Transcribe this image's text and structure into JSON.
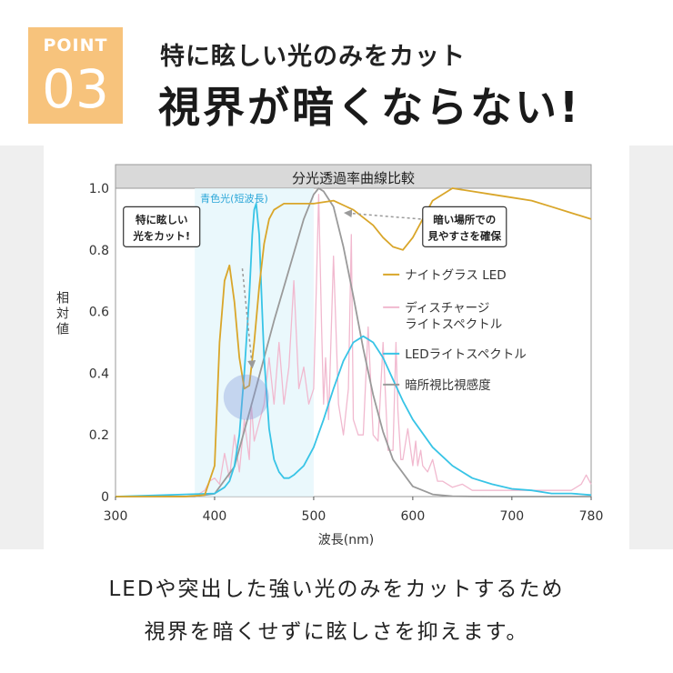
{
  "header": {
    "badge_word": "POINT",
    "badge_number": "03",
    "subtitle": "特に眩しい光のみをカット",
    "title": "視界が暗くならない!"
  },
  "colors": {
    "badge": "#f7c37c",
    "nightglass_led": "#d9a62a",
    "discharge_spectrum": "#f1b9cf",
    "led_spectrum": "#38c4e6",
    "scotopic": "#9a9a9a",
    "blue_band": "#e3f5fb",
    "annotation_blue": "#2aa6d8"
  },
  "chart_data": {
    "type": "line",
    "title": "分光透過率曲線比較",
    "xlabel": "波長(nm)",
    "ylabel": "相対値",
    "xlim": [
      300,
      780
    ],
    "ylim": [
      0,
      1.0
    ],
    "xticks": [
      "300",
      "400",
      "500",
      "600",
      "700",
      "780"
    ],
    "yticks": [
      "0",
      "0.2",
      "0.4",
      "0.6",
      "0.8",
      "1.0"
    ],
    "grid": false,
    "legend_position": "right",
    "blue_band": {
      "label": "青色光(短波長)",
      "range": [
        380,
        500
      ]
    },
    "annotations": [
      {
        "text": [
          "特に眩しい",
          "光をカット!"
        ],
        "target": [
          432,
          0.34
        ]
      },
      {
        "text": [
          "暗い場所での",
          "見やすさを確保"
        ],
        "target": [
          530,
          0.93
        ]
      }
    ],
    "series": [
      {
        "name": "ナイトグラス LED",
        "color": "#d9a62a",
        "x": [
          300,
          370,
          390,
          400,
          405,
          410,
          415,
          420,
          425,
          430,
          435,
          440,
          445,
          450,
          455,
          460,
          470,
          480,
          500,
          520,
          540,
          560,
          570,
          580,
          590,
          600,
          610,
          620,
          640,
          660,
          680,
          700,
          720,
          740,
          760,
          780
        ],
        "y": [
          0,
          0,
          0.005,
          0.1,
          0.5,
          0.7,
          0.75,
          0.63,
          0.45,
          0.35,
          0.36,
          0.5,
          0.68,
          0.82,
          0.9,
          0.93,
          0.95,
          0.95,
          0.95,
          0.96,
          0.93,
          0.88,
          0.84,
          0.81,
          0.8,
          0.84,
          0.9,
          0.96,
          1.0,
          0.99,
          0.98,
          0.97,
          0.96,
          0.94,
          0.92,
          0.9
        ]
      },
      {
        "name": "ディスチャージ ライトスペクトル",
        "color": "#f1b9cf",
        "x": [
          300,
          380,
          390,
          395,
          400,
          405,
          410,
          415,
          420,
          425,
          430,
          435,
          437,
          440,
          445,
          450,
          455,
          460,
          465,
          470,
          475,
          480,
          485,
          490,
          495,
          500,
          503,
          505,
          508,
          510,
          512,
          515,
          520,
          525,
          530,
          535,
          538,
          540,
          545,
          550,
          555,
          560,
          565,
          570,
          575,
          580,
          583,
          585,
          588,
          590,
          595,
          600,
          603,
          605,
          608,
          610,
          615,
          620,
          625,
          630,
          640,
          650,
          660,
          670,
          680,
          690,
          700,
          710,
          720,
          740,
          760,
          770,
          775,
          780
        ],
        "y": [
          0,
          0,
          0.02,
          0.05,
          0.06,
          0.04,
          0.14,
          0.06,
          0.2,
          0.08,
          0.25,
          0.12,
          0.3,
          0.18,
          0.24,
          0.3,
          0.45,
          0.3,
          0.5,
          0.3,
          0.42,
          0.7,
          0.35,
          0.42,
          0.3,
          0.35,
          0.72,
          0.98,
          0.55,
          0.3,
          0.45,
          0.25,
          0.78,
          0.3,
          0.2,
          0.35,
          0.85,
          0.25,
          0.2,
          0.2,
          0.55,
          0.2,
          0.18,
          0.5,
          0.15,
          0.15,
          0.5,
          0.28,
          0.12,
          0.12,
          0.22,
          0.1,
          0.18,
          0.1,
          0.15,
          0.1,
          0.08,
          0.12,
          0.05,
          0.05,
          0.03,
          0.04,
          0.02,
          0.02,
          0.02,
          0.02,
          0.02,
          0.02,
          0.02,
          0.02,
          0.02,
          0.04,
          0.07,
          0.04
        ]
      },
      {
        "name": "LEDライトスペクトル",
        "color": "#38c4e6",
        "x": [
          300,
          400,
          410,
          415,
          420,
          425,
          430,
          435,
          438,
          440,
          442,
          445,
          448,
          450,
          455,
          460,
          465,
          470,
          475,
          480,
          490,
          500,
          510,
          520,
          530,
          540,
          550,
          560,
          570,
          580,
          590,
          600,
          620,
          640,
          660,
          680,
          700,
          720,
          740,
          760,
          780
        ],
        "y": [
          0,
          0.01,
          0.03,
          0.05,
          0.1,
          0.2,
          0.4,
          0.65,
          0.85,
          0.93,
          0.95,
          0.85,
          0.6,
          0.45,
          0.22,
          0.12,
          0.08,
          0.06,
          0.06,
          0.07,
          0.1,
          0.16,
          0.25,
          0.35,
          0.44,
          0.5,
          0.52,
          0.5,
          0.45,
          0.38,
          0.31,
          0.25,
          0.16,
          0.1,
          0.06,
          0.04,
          0.025,
          0.02,
          0.01,
          0.01,
          0.005
        ]
      },
      {
        "name": "暗所視比視感度",
        "color": "#9a9a9a",
        "x": [
          300,
          380,
          400,
          420,
          440,
          460,
          480,
          490,
          500,
          505,
          510,
          520,
          530,
          540,
          550,
          560,
          570,
          580,
          600,
          620,
          640,
          660,
          680,
          700,
          780
        ],
        "y": [
          0,
          0.0006,
          0.009,
          0.097,
          0.33,
          0.57,
          0.79,
          0.9,
          0.98,
          1.0,
          0.99,
          0.94,
          0.81,
          0.65,
          0.48,
          0.33,
          0.21,
          0.12,
          0.033,
          0.007,
          0.0013,
          0.0002,
          0,
          0,
          0
        ]
      }
    ]
  },
  "legend": [
    {
      "text": [
        "ナイトグラス LED"
      ],
      "color": "#d9a62a"
    },
    {
      "text": [
        "ディスチャージ",
        "ライトスペクトル"
      ],
      "color": "#f1b9cf"
    },
    {
      "text": [
        "LEDライトスペクトル"
      ],
      "color": "#38c4e6"
    },
    {
      "text": [
        "暗所視比視感度"
      ],
      "color": "#9a9a9a"
    }
  ],
  "footer": {
    "line1": "LEDや突出した強い光のみをカットするため",
    "line2": "視界を暗くせずに眩しさを抑えます。"
  }
}
